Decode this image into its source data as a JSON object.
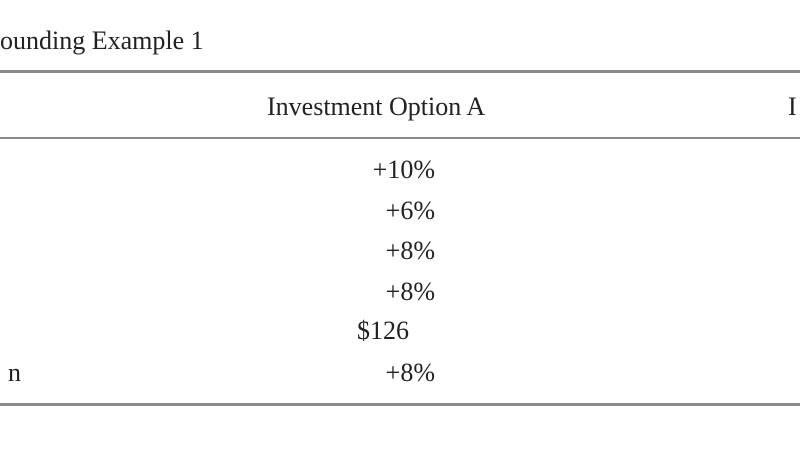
{
  "title": "ounding Example 1",
  "table": {
    "header": [
      "Investment Option A",
      "I"
    ],
    "rows": [
      {
        "label": null,
        "value": "+10%"
      },
      {
        "label": null,
        "value": "+6%"
      },
      {
        "label": null,
        "value": "+8%"
      },
      {
        "label": null,
        "value": "+8%"
      },
      {
        "label": null,
        "value": "$126"
      },
      {
        "label": "n",
        "value": "+8%"
      }
    ]
  }
}
